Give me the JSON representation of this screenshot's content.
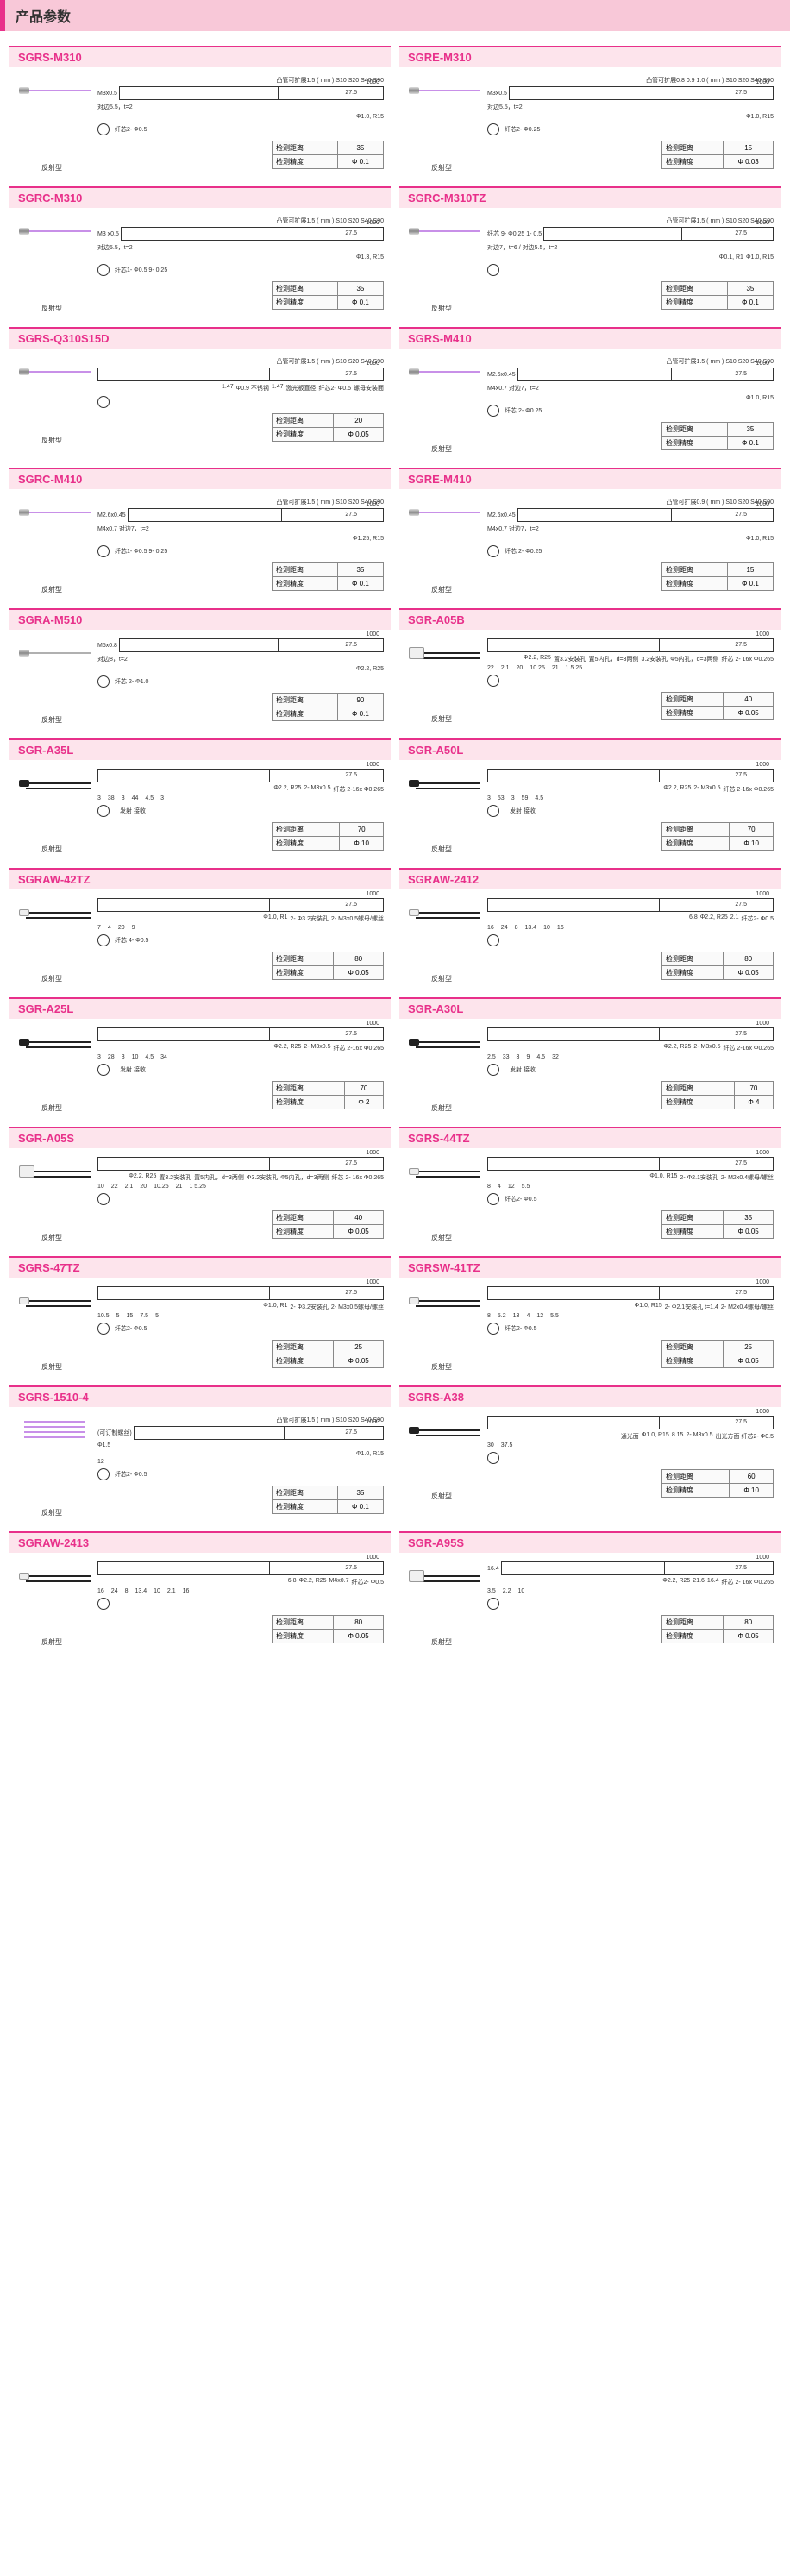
{
  "page_title": "产品参数",
  "common": {
    "type_label": "反射型",
    "spec_distance": "检测距离",
    "spec_accuracy": "检测精度",
    "beam_prefix": "凸管可扩展",
    "beam_options": "S10  S20  S40  S90",
    "beam_options_1_5": "1.5 ( mm ) S10  S20  S40  S90",
    "beam_options_08": "0.8 0.9 1.0 ( mm ) S10  S20  S40  S90",
    "beam_options_09": "0.9 ( mm ) S10  S20  S40  S90",
    "cable_1000": "1000",
    "val_27_5": "27.5",
    "val_12": "12",
    "val_15": "15",
    "fiber_core_2": "纤芯 2-",
    "emit": "发射",
    "recv": "接收",
    "colors": {
      "violet": "#c890e8",
      "black": "#222222",
      "chrome": "#b8b8b8",
      "accent": "#e8308a",
      "title_bg": "#fde4ec"
    }
  },
  "products": [
    {
      "id": "SGRS-M310",
      "fiber_color": "#c890e8",
      "tip": "chrome",
      "dist": "35",
      "acc": "Φ 0.1",
      "top_note": "凸管可扩展1.5 ( mm ) S10  S20  S40  S90",
      "l1": "M3x0.5",
      "l2": "对边5.5，t=2",
      "notes": [
        "Φ1.0, R15"
      ],
      "core": "纤芯2- Φ0.5"
    },
    {
      "id": "SGRE-M310",
      "fiber_color": "#c890e8",
      "tip": "chrome",
      "dist": "15",
      "acc": "Φ 0.03",
      "top_note": "凸管可扩展0.8 0.9 1.0 ( mm ) S10  S20  S40  S90",
      "l1": "M3x0.5",
      "l2": "对边5.5，t=2",
      "notes": [
        "Φ1.0, R15"
      ],
      "core": "纤芯2- Φ0.25"
    },
    {
      "id": "SGRC-M310",
      "fiber_color": "#c890e8",
      "tip": "chrome",
      "dist": "35",
      "acc": "Φ 0.1",
      "top_note": "凸管可扩展1.5 ( mm ) S10  S20  S40  S90",
      "l1": "M3 x0.5",
      "l2": "对边5.5，t=2",
      "notes": [
        "Φ1.3, R15"
      ],
      "core": "纤芯1- Φ0.5  9- 0.25"
    },
    {
      "id": "SGRC-M310TZ",
      "fiber_color": "#c890e8",
      "tip": "chrome",
      "dist": "35",
      "acc": "Φ 0.1",
      "top_note": "凸管可扩展1.5 ( mm ) S10  S20  S40  S90",
      "l1": "纤芯 9- Φ0.25  1- 0.5",
      "l2": "对边7，t=6 / 对边5.5，t=2",
      "notes": [
        "Φ0.1, R1",
        "Φ1.0, R15"
      ],
      "core": ""
    },
    {
      "id": "SGRS-Q310S15D",
      "fiber_color": "#c890e8",
      "tip": "chrome",
      "dist": "20",
      "acc": "Φ 0.05",
      "top_note": "凸管可扩展1.5 ( mm ) S10  S20  S40  S90",
      "l1": "",
      "l2": "",
      "notes": [
        "1.47",
        "Φ0.9 不锈钢",
        "1.47",
        "激光板直径",
        "纤芯2- Φ0.5",
        "螺母安装面"
      ],
      "core": "",
      "extra_dims": "3"
    },
    {
      "id": "SGRS-M410",
      "fiber_color": "#c890e8",
      "tip": "chrome",
      "dist": "35",
      "acc": "Φ 0.1",
      "top_note": "凸管可扩展1.5 ( mm ) S10  S20  S40  S90",
      "l1": "M2.6x0.45",
      "l2": "M4x0.7 对边7，t=2",
      "notes": [
        "Φ1.0, R15"
      ],
      "core": "纤芯 2- Φ0.25"
    },
    {
      "id": "SGRC-M410",
      "fiber_color": "#c890e8",
      "tip": "chrome",
      "dist": "35",
      "acc": "Φ 0.1",
      "top_note": "凸管可扩展1.5 ( mm ) S10  S20  S40  S90",
      "l1": "M2.6x0.45",
      "l2": "M4x0.7 对边7，t=2",
      "notes": [
        "Φ1.25, R15"
      ],
      "core": "纤芯1- Φ0.5  9- 0.25"
    },
    {
      "id": "SGRE-M410",
      "fiber_color": "#c890e8",
      "tip": "chrome",
      "dist": "15",
      "acc": "Φ 0.1",
      "top_note": "凸管可扩展0.9 ( mm ) S10  S20  S40  S90",
      "l1": "M2.6x0.45",
      "l2": "M4x0.7 对边7，t=2",
      "notes": [
        "Φ1.0, R15"
      ],
      "core": "纤芯 2- Φ0.25"
    },
    {
      "id": "SGRA-M510",
      "fiber_color": "#b0b0b0",
      "tip": "chrome",
      "dist": "90",
      "acc": "Φ 0.1",
      "top_note": "",
      "l1": "M5x0.8",
      "l2": "对边8，t=2",
      "notes": [
        "Φ2.2, R25"
      ],
      "core": "纤芯 2- Φ1.0"
    },
    {
      "id": "SGR-A05B",
      "fiber_color": "#222",
      "tip": "square",
      "dist": "40",
      "acc": "Φ 0.05",
      "top_note": "",
      "l1": "",
      "l2": "",
      "notes": [
        "Φ2.2, R25",
        "置3.2安装孔",
        "置5内孔，d=3两侧",
        "3.2安装孔",
        "Φ5内孔，d=3两侧",
        "纤芯 2- 16x Φ0.265"
      ],
      "core": "",
      "dims": [
        "22",
        "2.1",
        "20",
        "10.25",
        "21",
        "1 5.25"
      ]
    },
    {
      "id": "SGR-A35L",
      "fiber_color": "#222",
      "tip": "black",
      "dist": "70",
      "acc": "Φ 10",
      "top_note": "",
      "l1": "",
      "l2": "",
      "notes": [
        "Φ2.2, R25",
        "2- M3x0.5",
        "纤芯 2-16x Φ0.265"
      ],
      "core": "",
      "dims": [
        "3",
        "38",
        "3",
        "44",
        "4.5",
        "3"
      ],
      "bottom_labels": "发射  接收"
    },
    {
      "id": "SGR-A50L",
      "fiber_color": "#222",
      "tip": "black",
      "dist": "70",
      "acc": "Φ 10",
      "top_note": "",
      "l1": "",
      "l2": "",
      "notes": [
        "Φ2.2, R25",
        "2- M3x0.5",
        "纤芯 2-16x Φ0.265"
      ],
      "core": "",
      "dims": [
        "3",
        "53",
        "3",
        "59",
        "4.5"
      ],
      "bottom_labels": "发射  接收"
    },
    {
      "id": "SGRAW-42TZ",
      "fiber_color": "#222",
      "tip": "white",
      "dist": "80",
      "acc": "Φ 0.05",
      "top_note": "",
      "l1": "",
      "l2": "",
      "notes": [
        "Φ1.0, R1",
        "2- Φ3.2安装孔",
        "2- M3x0.5螺母/螺丝"
      ],
      "core": "纤芯 4- Φ0.5",
      "dims": [
        "7",
        "4",
        "20",
        "9"
      ]
    },
    {
      "id": "SGRAW-2412",
      "fiber_color": "#222",
      "tip": "white",
      "dist": "80",
      "acc": "Φ 0.05",
      "top_note": "",
      "l1": "",
      "l2": "",
      "notes": [
        "6.8",
        "Φ2.2, R25",
        "2.1",
        "纤芯2- Φ0.5"
      ],
      "core": "",
      "dims": [
        "16",
        "24",
        "8",
        "13.4",
        "10",
        "16"
      ]
    },
    {
      "id": "SGR-A25L",
      "fiber_color": "#222",
      "tip": "black",
      "dist": "70",
      "acc": "Φ 2",
      "top_note": "",
      "l1": "",
      "l2": "",
      "notes": [
        "Φ2.2, R25",
        "2- M3x0.5",
        "纤芯 2-16x Φ0.265"
      ],
      "core": "",
      "dims": [
        "3",
        "28",
        "3",
        "10",
        "4.5",
        "34"
      ],
      "bottom_labels": "发射  接收"
    },
    {
      "id": "SGR-A30L",
      "fiber_color": "#222",
      "tip": "black",
      "dist": "70",
      "acc": "Φ 4",
      "top_note": "",
      "l1": "",
      "l2": "",
      "notes": [
        "Φ2.2, R25",
        "2- M3x0.5",
        "纤芯 2-16x Φ0.265"
      ],
      "core": "",
      "dims": [
        "2.5",
        "33",
        "3",
        "9",
        "4.5",
        "32"
      ],
      "bottom_labels": "发射  接收"
    },
    {
      "id": "SGR-A05S",
      "fiber_color": "#222",
      "tip": "square",
      "dist": "40",
      "acc": "Φ 0.05",
      "top_note": "",
      "l1": "",
      "l2": "",
      "notes": [
        "Φ2.2, R25",
        "置3.2安装孔",
        "置5内孔，d=3两侧",
        "Φ3.2安装孔",
        "Φ5内孔，d=3两侧",
        "纤芯 2- 16x Φ0.265"
      ],
      "core": "",
      "dims": [
        "10",
        "22",
        "2.1",
        "20",
        "10.25",
        "21",
        "1 5.25"
      ]
    },
    {
      "id": "SGRS-44TZ",
      "fiber_color": "#222",
      "tip": "white",
      "dist": "35",
      "acc": "Φ 0.05",
      "top_note": "",
      "l1": "",
      "l2": "",
      "notes": [
        "Φ1.0, R15",
        "2- Φ2.1安装孔",
        "2- M2x0.4螺母/螺丝"
      ],
      "core": "纤芯2- Φ0.5",
      "dims": [
        "8",
        "4",
        "12",
        "5.5"
      ]
    },
    {
      "id": "SGRS-47TZ",
      "fiber_color": "#222",
      "tip": "white",
      "dist": "25",
      "acc": "Φ 0.05",
      "top_note": "",
      "l1": "",
      "l2": "",
      "notes": [
        "Φ1.0, R1",
        "2- Φ3.2安装孔",
        "2- M3x0.5螺母/螺丝"
      ],
      "core": "纤芯2- Φ0.5",
      "dims": [
        "10.5",
        "5",
        "15",
        "7.5",
        "5"
      ]
    },
    {
      "id": "SGRSW-41TZ",
      "fiber_color": "#222",
      "tip": "white",
      "dist": "25",
      "acc": "Φ 0.05",
      "top_note": "",
      "l1": "",
      "l2": "",
      "notes": [
        "Φ1.0, R15",
        "2- Φ2.1安装孔 t=1.4",
        "2- M2x0.4螺母/螺丝"
      ],
      "core": "纤芯2- Φ0.5",
      "dims": [
        "8",
        "5.2",
        "13",
        "4",
        "12",
        "5.5"
      ]
    },
    {
      "id": "SGRS-1510-4",
      "fiber_color": "#c890e8",
      "tip": "quad",
      "dist": "35",
      "acc": "Φ 0.1",
      "top_note": "凸管可扩展1.5 ( mm ) S10  S20  S40  S90",
      "l1": "(可订制螺丝)",
      "l2": "Φ1.5",
      "notes": [
        "Φ1.0, R15"
      ],
      "core": "纤芯2- Φ0.5",
      "dims": [
        "12"
      ]
    },
    {
      "id": "SGRS-A38",
      "fiber_color": "#222",
      "tip": "black",
      "dist": "60",
      "acc": "Φ 10",
      "top_note": "",
      "l1": "",
      "l2": "",
      "notes": [
        "通光面",
        "Φ1.0, R15",
        "8 15",
        "2- M3x0.5",
        "出光方面 纤芯2- Φ0.5"
      ],
      "core": "",
      "dims": [
        "30",
        "37.5"
      ]
    },
    {
      "id": "SGRAW-2413",
      "fiber_color": "#222",
      "tip": "white",
      "dist": "80",
      "acc": "Φ 0.05",
      "top_note": "",
      "l1": "",
      "l2": "",
      "notes": [
        "6.8",
        "Φ2.2, R25",
        "M4x0.7",
        "纤芯2- Φ0.5"
      ],
      "core": "",
      "dims": [
        "16",
        "24",
        "8",
        "13.4",
        "10",
        "2.1",
        "16"
      ]
    },
    {
      "id": "SGR-A95S",
      "fiber_color": "#222",
      "tip": "square",
      "dist": "80",
      "acc": "Φ 0.05",
      "top_note": "",
      "l1": "16.4",
      "l2": "",
      "notes": [
        "Φ2.2, R25",
        "21.6",
        "16.4",
        "纤芯 2- 16x Φ0.265"
      ],
      "core": "",
      "dims": [
        "3.5",
        "2.2",
        "10"
      ]
    }
  ]
}
